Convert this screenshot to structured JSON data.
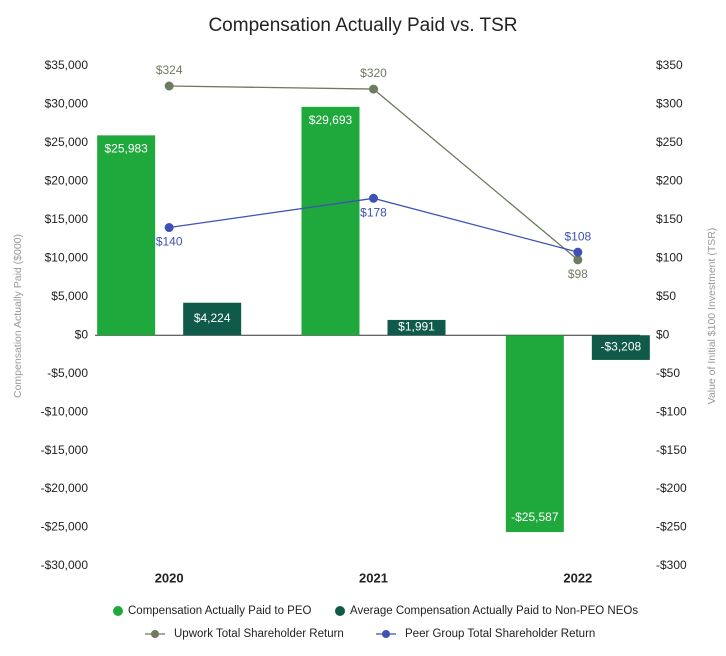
{
  "chart_data": {
    "type": "bar",
    "title": "Compensation Actually Paid vs. TSR",
    "ylabel": "Compensation Actually Paid ($000)",
    "y2label": "Value of Initial $100 Investment (TSR)",
    "categories": [
      "2020",
      "2021",
      "2022"
    ],
    "series": [
      {
        "name": "Compensation Actually Paid to PEO",
        "type": "bar",
        "color": "#1fa83c",
        "values": [
          25983,
          29693,
          -25587
        ],
        "value_labels": [
          "$25,983",
          "$29,693",
          "-$25,587"
        ]
      },
      {
        "name": "Average Compensation Actually Paid to Non-PEO NEOs",
        "type": "bar",
        "color": "#0f5a4a",
        "values": [
          4224,
          1991,
          -3208
        ],
        "value_labels": [
          "$4,224",
          "$1,991",
          "-$3,208"
        ]
      },
      {
        "name": "Upwork Total Shareholder Return",
        "type": "line",
        "axis": "y2",
        "color": "#6e7b60",
        "values": [
          324,
          320,
          98
        ],
        "value_labels": [
          "$324",
          "$320",
          "$98"
        ]
      },
      {
        "name": "Peer Group Total Shareholder Return",
        "type": "line",
        "axis": "y2",
        "color": "#3f51b5",
        "values": [
          140,
          178,
          108
        ],
        "value_labels": [
          "$140",
          "$178",
          "$108"
        ]
      }
    ],
    "ylim": [
      -30000,
      35000
    ],
    "yticks": [
      {
        "value": 35000,
        "label": "$35,000"
      },
      {
        "value": 30000,
        "label": "$30,000"
      },
      {
        "value": 25000,
        "label": "$25,000"
      },
      {
        "value": 20000,
        "label": "$20,000"
      },
      {
        "value": 15000,
        "label": "$15,000"
      },
      {
        "value": 10000,
        "label": "$10,000"
      },
      {
        "value": 5000,
        "label": "$5,000"
      },
      {
        "value": 0,
        "label": "$0"
      },
      {
        "value": -5000,
        "label": "-$5,000"
      },
      {
        "value": -10000,
        "label": "-$10,000"
      },
      {
        "value": -15000,
        "label": "-$15,000"
      },
      {
        "value": -20000,
        "label": "-$20,000"
      },
      {
        "value": -25000,
        "label": "-$25,000"
      },
      {
        "value": -30000,
        "label": "-$30,000"
      }
    ],
    "y2lim": [
      -300,
      350
    ],
    "y2ticks": [
      {
        "value": 350,
        "label": "$350"
      },
      {
        "value": 300,
        "label": "$300"
      },
      {
        "value": 250,
        "label": "$250"
      },
      {
        "value": 200,
        "label": "$200"
      },
      {
        "value": 150,
        "label": "$150"
      },
      {
        "value": 100,
        "label": "$100"
      },
      {
        "value": 50,
        "label": "$50"
      },
      {
        "value": 0,
        "label": "$0"
      },
      {
        "value": -50,
        "label": "-$50"
      },
      {
        "value": -100,
        "label": "-$100"
      },
      {
        "value": -150,
        "label": "-$150"
      },
      {
        "value": -200,
        "label": "-$200"
      },
      {
        "value": -250,
        "label": "-$250"
      },
      {
        "value": -300,
        "label": "-$300"
      }
    ]
  }
}
